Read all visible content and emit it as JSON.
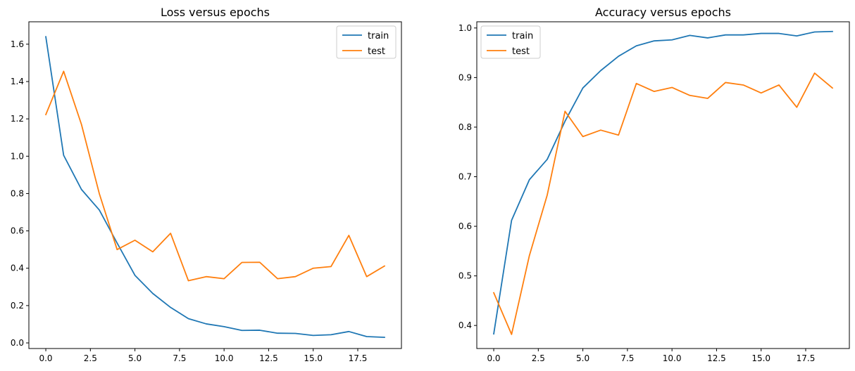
{
  "chart_data": [
    {
      "type": "line",
      "title": "Loss versus epochs",
      "xlabel": "",
      "ylabel": "",
      "xlim": [
        -0.95,
        19.95
      ],
      "ylim": [
        -0.03,
        1.72
      ],
      "xticks": [
        0.0,
        2.5,
        5.0,
        7.5,
        10.0,
        12.5,
        15.0,
        17.5
      ],
      "xtick_labels": [
        "0.0",
        "2.5",
        "5.0",
        "7.5",
        "10.0",
        "12.5",
        "15.0",
        "17.5"
      ],
      "yticks": [
        0.0,
        0.2,
        0.4,
        0.6,
        0.8,
        1.0,
        1.2,
        1.4,
        1.6
      ],
      "ytick_labels": [
        "0.0",
        "0.2",
        "0.4",
        "0.6",
        "0.8",
        "1.0",
        "1.2",
        "1.4",
        "1.6"
      ],
      "grid": false,
      "legend_position": "top-right",
      "x": [
        0,
        1,
        2,
        3,
        4,
        5,
        6,
        7,
        8,
        9,
        10,
        11,
        12,
        13,
        14,
        15,
        16,
        17,
        18,
        19
      ],
      "series": [
        {
          "name": "train",
          "color": "#1f77b4",
          "values": [
            1.64,
            1.005,
            0.822,
            0.712,
            0.535,
            0.362,
            0.265,
            0.19,
            0.13,
            0.102,
            0.087,
            0.067,
            0.068,
            0.052,
            0.051,
            0.04,
            0.044,
            0.061,
            0.034,
            0.03
          ]
        },
        {
          "name": "test",
          "color": "#ff7f0e",
          "values": [
            1.223,
            1.455,
            1.17,
            0.8,
            0.5,
            0.55,
            0.488,
            0.587,
            0.333,
            0.355,
            0.344,
            0.431,
            0.432,
            0.344,
            0.355,
            0.4,
            0.409,
            0.576,
            0.355,
            0.412
          ]
        }
      ]
    },
    {
      "type": "line",
      "title": "Accuracy versus epochs",
      "xlabel": "",
      "ylabel": "",
      "xlim": [
        -0.95,
        19.95
      ],
      "ylim": [
        0.3535,
        1.0125
      ],
      "xticks": [
        0.0,
        2.5,
        5.0,
        7.5,
        10.0,
        12.5,
        15.0,
        17.5
      ],
      "xtick_labels": [
        "0.0",
        "2.5",
        "5.0",
        "7.5",
        "10.0",
        "12.5",
        "15.0",
        "17.5"
      ],
      "yticks": [
        0.4,
        0.5,
        0.6,
        0.7,
        0.8,
        0.9,
        1.0
      ],
      "ytick_labels": [
        "0.4",
        "0.5",
        "0.6",
        "0.7",
        "0.8",
        "0.9",
        "1.0"
      ],
      "grid": false,
      "legend_position": "top-left",
      "x": [
        0,
        1,
        2,
        3,
        4,
        5,
        6,
        7,
        8,
        9,
        10,
        11,
        12,
        13,
        14,
        15,
        16,
        17,
        18,
        19
      ],
      "series": [
        {
          "name": "train",
          "color": "#1f77b4",
          "values": [
            0.383,
            0.612,
            0.694,
            0.735,
            0.812,
            0.879,
            0.914,
            0.943,
            0.964,
            0.974,
            0.976,
            0.985,
            0.98,
            0.986,
            0.986,
            0.989,
            0.989,
            0.984,
            0.992,
            0.993
          ]
        },
        {
          "name": "test",
          "color": "#ff7f0e",
          "values": [
            0.466,
            0.382,
            0.541,
            0.663,
            0.832,
            0.781,
            0.794,
            0.784,
            0.888,
            0.872,
            0.88,
            0.864,
            0.858,
            0.89,
            0.885,
            0.869,
            0.885,
            0.84,
            0.909,
            0.879
          ]
        }
      ]
    }
  ]
}
